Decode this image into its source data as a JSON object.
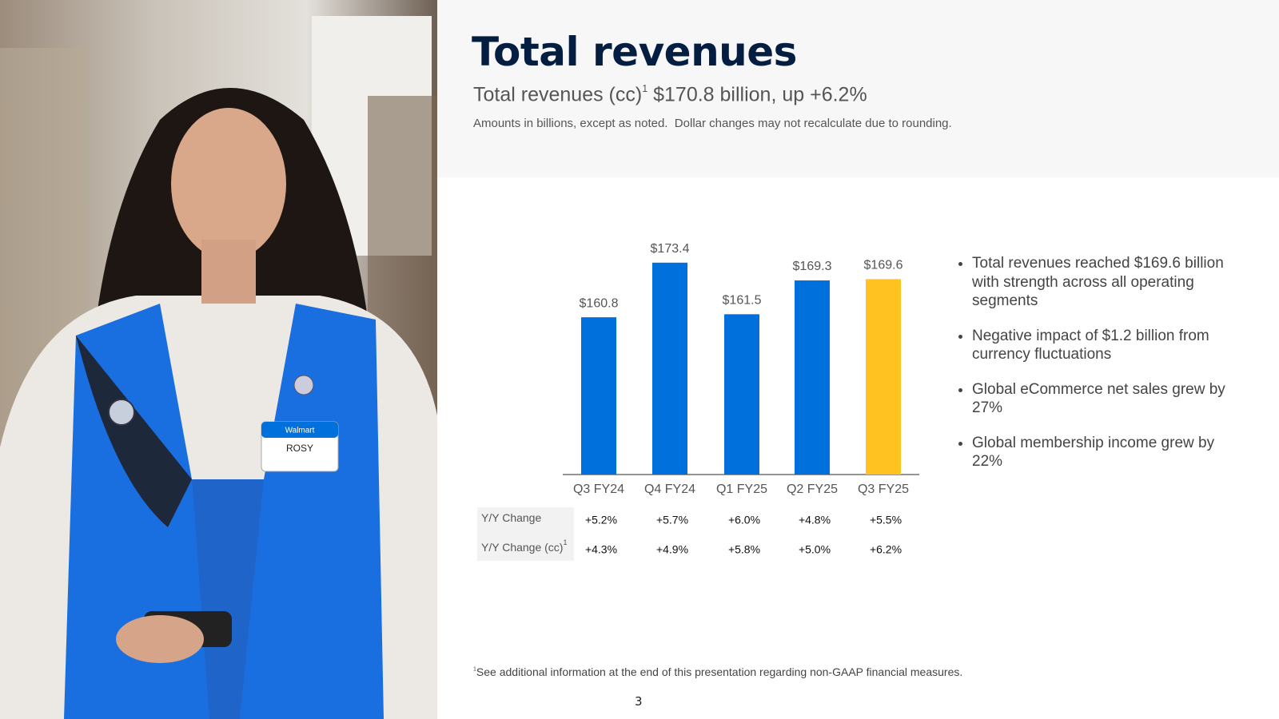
{
  "header": {
    "title": "Total revenues",
    "subtitle": "Total revenues (cc)",
    "subtitle_note": "1",
    "subtitle_value": "$170.8 billion, up +6.2%",
    "note": "Amounts in billions, except as noted.  Dollar changes may not recalculate due to rounding."
  },
  "photo": {
    "badge_brand": "Walmart",
    "badge_name": "ROSY"
  },
  "chart_data": {
    "type": "bar",
    "categories": [
      "Q3 FY24",
      "Q4 FY24",
      "Q1 FY25",
      "Q2 FY25",
      "Q3 FY25"
    ],
    "values": [
      160.8,
      173.4,
      161.5,
      169.3,
      169.6
    ],
    "value_labels": [
      "$160.8",
      "$173.4",
      "$161.5",
      "$169.3",
      "$169.6"
    ],
    "colors": [
      "#0071dc",
      "#0071dc",
      "#0071dc",
      "#0071dc",
      "#ffc220"
    ],
    "ylim": [
      124.5,
      180
    ]
  },
  "table": {
    "rows": [
      {
        "label": "Y/Y Change",
        "values": [
          "+5.2%",
          "+5.7%",
          "+6.0%",
          "+4.8%",
          "+5.5%"
        ]
      },
      {
        "label": "Y/Y Change (cc)",
        "note": "1",
        "values": [
          "+4.3%",
          "+4.9%",
          "+5.8%",
          "+5.0%",
          "+6.2%"
        ]
      }
    ]
  },
  "bullets": [
    "Total revenues reached $169.6 billion with strength across all operating segments",
    "Negative impact of $1.2 billion from currency fluctuations",
    "Global eCommerce net sales grew by 27%",
    "Global membership income grew by 22%"
  ],
  "footnote": {
    "mark": "1",
    "text": "See additional information at the end of this presentation regarding non-GAAP financial measures."
  },
  "page_number": "3"
}
